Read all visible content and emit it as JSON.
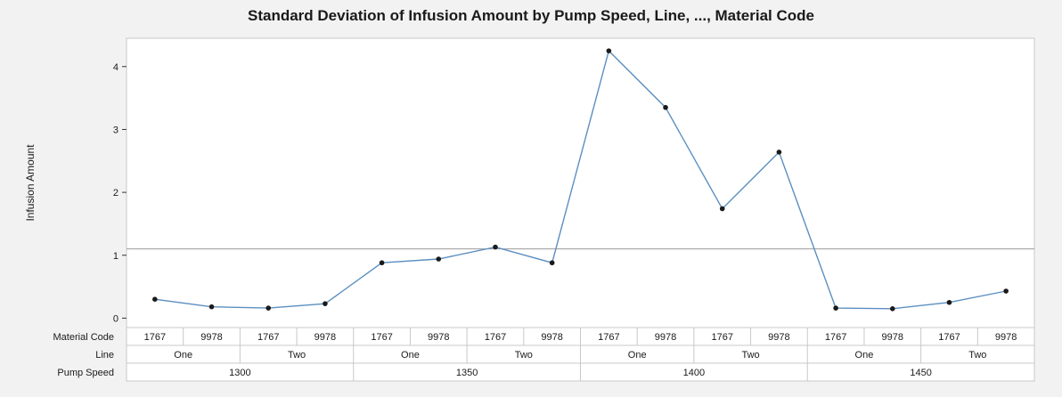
{
  "chart_data": {
    "type": "line",
    "title": "Standard Deviation of Infusion Amount by Pump Speed, Line, ..., Material Code",
    "ylabel": "Infusion Amount",
    "ylim": [
      -0.15,
      4.45
    ],
    "yticks": [
      0,
      1,
      2,
      3,
      4
    ],
    "reference_line": 1.1,
    "grid": false,
    "colors": {
      "line": "#5b8fc0",
      "point": "#1a1a1a",
      "reference": "#9a9a9a",
      "plot_bg": "#ffffff",
      "border": "#c8c8c8"
    },
    "factors": [
      {
        "name": "Pump Speed",
        "levels": [
          "1300",
          "1350",
          "1400",
          "1450"
        ]
      },
      {
        "name": "Line",
        "levels": [
          "One",
          "Two"
        ]
      },
      {
        "name": "Material Code",
        "levels": [
          "1767",
          "9978"
        ]
      }
    ],
    "row_labels": [
      "Material Code",
      "Line",
      "Pump Speed"
    ],
    "categories": [
      {
        "material": "1767",
        "line": "One",
        "speed": "1300"
      },
      {
        "material": "9978",
        "line": "One",
        "speed": "1300"
      },
      {
        "material": "1767",
        "line": "Two",
        "speed": "1300"
      },
      {
        "material": "9978",
        "line": "Two",
        "speed": "1300"
      },
      {
        "material": "1767",
        "line": "One",
        "speed": "1350"
      },
      {
        "material": "9978",
        "line": "One",
        "speed": "1350"
      },
      {
        "material": "1767",
        "line": "Two",
        "speed": "1350"
      },
      {
        "material": "9978",
        "line": "Two",
        "speed": "1350"
      },
      {
        "material": "1767",
        "line": "One",
        "speed": "1400"
      },
      {
        "material": "9978",
        "line": "One",
        "speed": "1400"
      },
      {
        "material": "1767",
        "line": "Two",
        "speed": "1400"
      },
      {
        "material": "9978",
        "line": "Two",
        "speed": "1400"
      },
      {
        "material": "1767",
        "line": "One",
        "speed": "1450"
      },
      {
        "material": "9978",
        "line": "One",
        "speed": "1450"
      },
      {
        "material": "1767",
        "line": "Two",
        "speed": "1450"
      },
      {
        "material": "9978",
        "line": "Two",
        "speed": "1450"
      }
    ],
    "values": [
      0.3,
      0.18,
      0.16,
      0.23,
      0.88,
      0.94,
      1.13,
      0.88,
      4.25,
      3.35,
      1.74,
      2.64,
      0.16,
      0.15,
      0.25,
      0.43
    ]
  }
}
